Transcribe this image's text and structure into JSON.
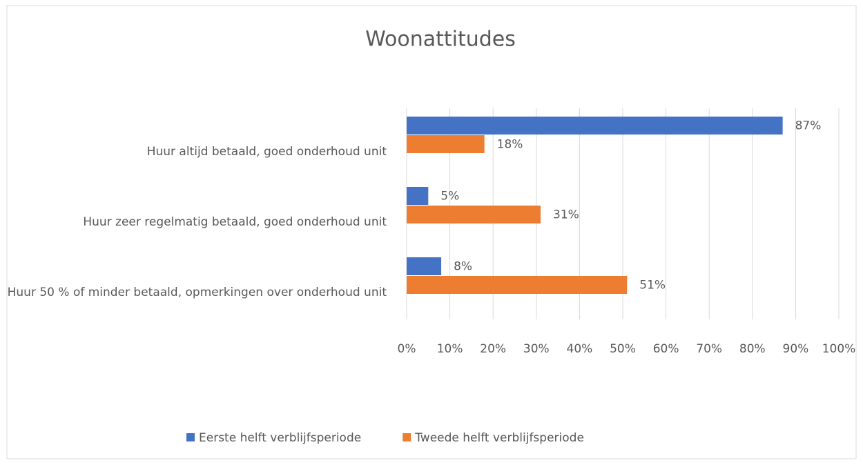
{
  "chart_data": {
    "type": "bar",
    "orientation": "horizontal",
    "title": "Woonattitudes",
    "categories": [
      "Huur altijd betaald, goed onderhoud unit",
      "Huur zeer regelmatig betaald, goed onderhoud unit",
      "Huur 50 % of minder betaald, opmerkingen over onderhoud unit"
    ],
    "series": [
      {
        "name": "Eerste helft verblijfsperiode",
        "color": "#4472c4",
        "values": [
          87,
          5,
          8
        ],
        "value_labels": [
          "87%",
          "5%",
          "8%"
        ]
      },
      {
        "name": "Tweede helft verblijfsperiode",
        "color": "#ed7d31",
        "values": [
          18,
          31,
          51
        ],
        "value_labels": [
          "18%",
          "31%",
          "51%"
        ]
      }
    ],
    "xlim": [
      0,
      100
    ],
    "xticks": [
      {
        "value": 0,
        "label": "0%"
      },
      {
        "value": 10,
        "label": "10%"
      },
      {
        "value": 20,
        "label": "20%"
      },
      {
        "value": 30,
        "label": "30%"
      },
      {
        "value": 40,
        "label": "40%"
      },
      {
        "value": 50,
        "label": "50%"
      },
      {
        "value": 60,
        "label": "60%"
      },
      {
        "value": 70,
        "label": "70%"
      },
      {
        "value": 80,
        "label": "80%"
      },
      {
        "value": 90,
        "label": "90%"
      },
      {
        "value": 100,
        "label": "100%"
      }
    ],
    "grid": true,
    "legend": "bottom"
  }
}
